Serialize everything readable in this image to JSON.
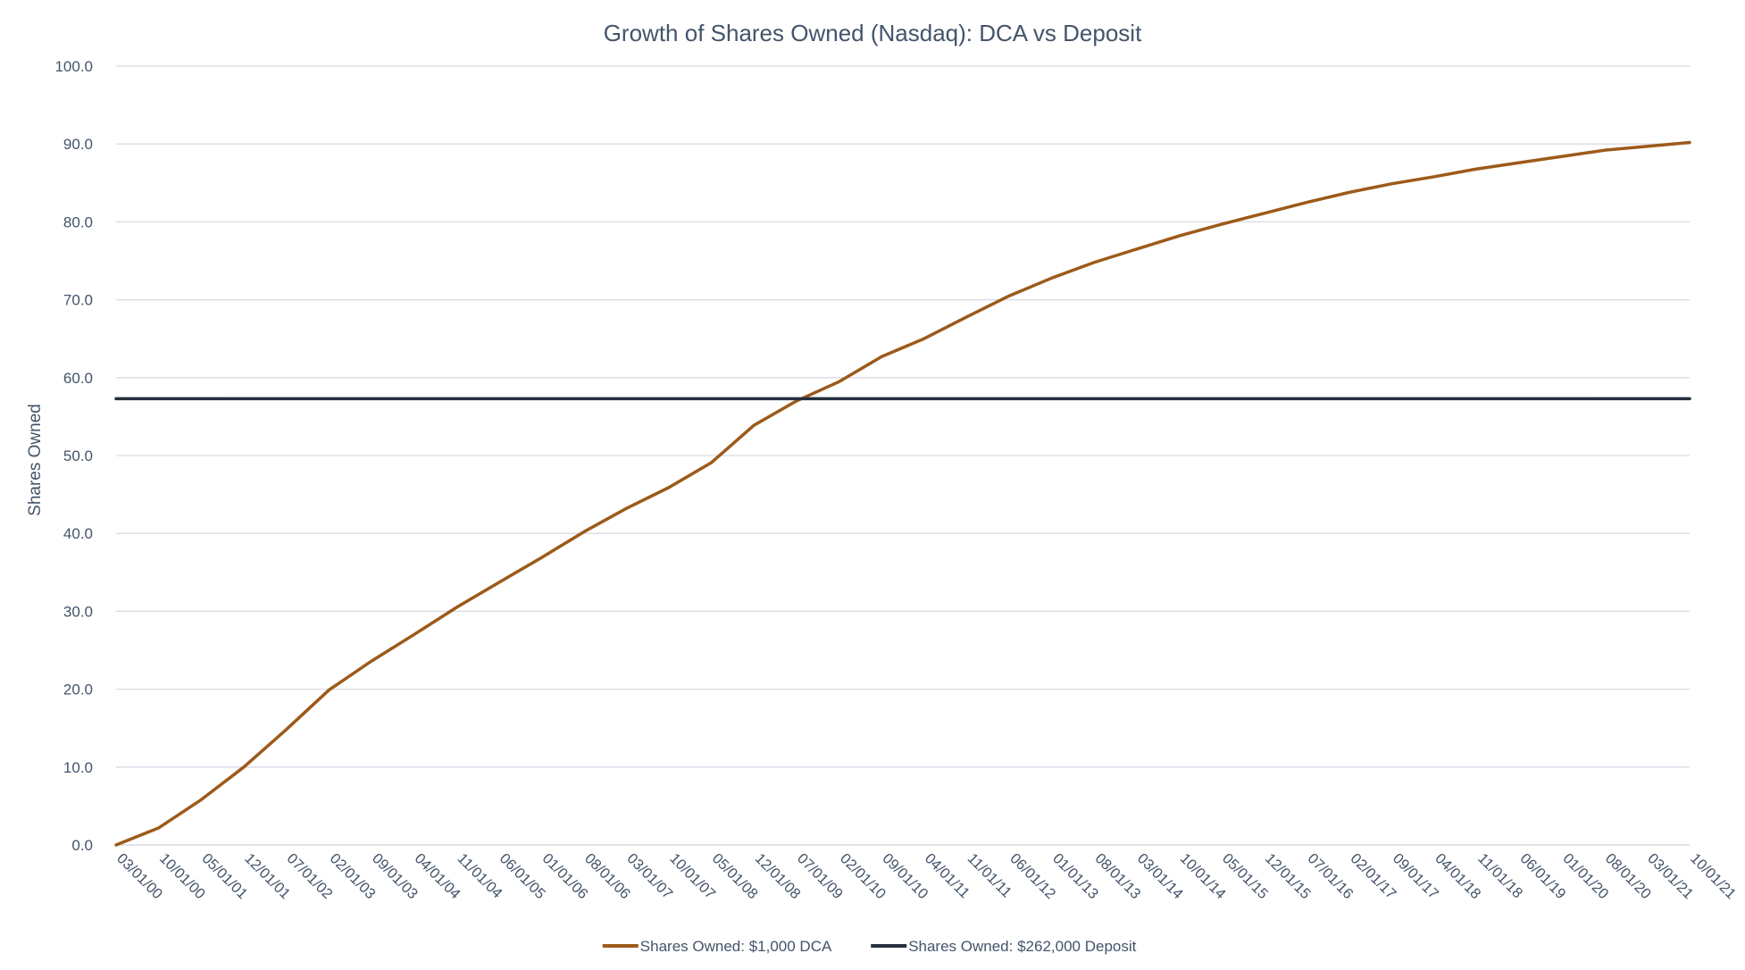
{
  "chart_data": {
    "type": "line",
    "title": "Growth of Shares Owned (Nasdaq): DCA vs Deposit",
    "xlabel": "",
    "ylabel": "Shares Owned",
    "ylim": [
      0,
      100
    ],
    "y_ticks": [
      "0.0",
      "10.0",
      "20.0",
      "30.0",
      "40.0",
      "50.0",
      "60.0",
      "70.0",
      "80.0",
      "90.0",
      "100.0"
    ],
    "x_range": [
      "03/01/00",
      "10/01/21"
    ],
    "x_ticks": [
      "03/01/00",
      "10/01/00",
      "05/01/01",
      "12/01/01",
      "07/01/02",
      "02/01/03",
      "09/01/03",
      "04/01/04",
      "11/01/04",
      "06/01/05",
      "01/01/06",
      "08/01/06",
      "03/01/07",
      "10/01/07",
      "05/01/08",
      "12/01/08",
      "07/01/09",
      "02/01/10",
      "09/01/10",
      "04/01/11",
      "11/01/11",
      "06/01/12",
      "01/01/13",
      "08/01/13",
      "03/01/14",
      "10/01/14",
      "05/01/15",
      "12/01/15",
      "07/01/16",
      "02/01/17",
      "09/01/17",
      "04/01/18",
      "11/01/18",
      "06/01/19",
      "01/01/20",
      "08/01/20",
      "03/01/21",
      "10/01/21"
    ],
    "grid": true,
    "legend_position": "bottom",
    "series": [
      {
        "name": "Shares Owned: $1,000 DCA",
        "color": "#9c5a1a",
        "x": [
          "03/01/00",
          "10/01/00",
          "05/01/01",
          "12/01/01",
          "07/01/02",
          "02/01/03",
          "09/01/03",
          "04/01/04",
          "11/01/04",
          "06/01/05",
          "01/01/06",
          "08/01/06",
          "03/01/07",
          "10/01/07",
          "05/01/08",
          "12/01/08",
          "07/01/09",
          "02/01/10",
          "09/01/10",
          "04/01/11",
          "11/01/11",
          "06/01/12",
          "01/01/13",
          "08/01/13",
          "03/01/14",
          "10/01/14",
          "05/01/15",
          "12/01/15",
          "07/01/16",
          "02/01/17",
          "09/01/17",
          "04/01/18",
          "11/01/18",
          "06/01/19",
          "01/01/20",
          "08/01/20",
          "03/01/21",
          "10/01/21"
        ],
        "values": [
          0.0,
          2.2,
          5.8,
          10.0,
          14.8,
          19.9,
          23.6,
          27.0,
          30.5,
          33.7,
          36.9,
          40.2,
          43.2,
          45.9,
          49.1,
          53.9,
          57.0,
          59.5,
          62.7,
          65.0,
          67.8,
          70.5,
          72.8,
          74.8,
          76.5,
          78.2,
          79.7,
          81.1,
          82.5,
          83.8,
          84.9,
          85.8,
          86.8,
          87.6,
          88.4,
          89.2,
          89.7,
          90.2
        ]
      },
      {
        "name": "Shares Owned: $262,000 Deposit",
        "color": "#262f3d",
        "x": [
          "03/01/00",
          "10/01/21"
        ],
        "values": [
          57.3,
          57.3
        ]
      }
    ],
    "colors": {
      "title": "#44546a",
      "axis_text": "#44546a",
      "gridline": "#d9d9e6",
      "axis_line": "#d0d0dc"
    }
  }
}
